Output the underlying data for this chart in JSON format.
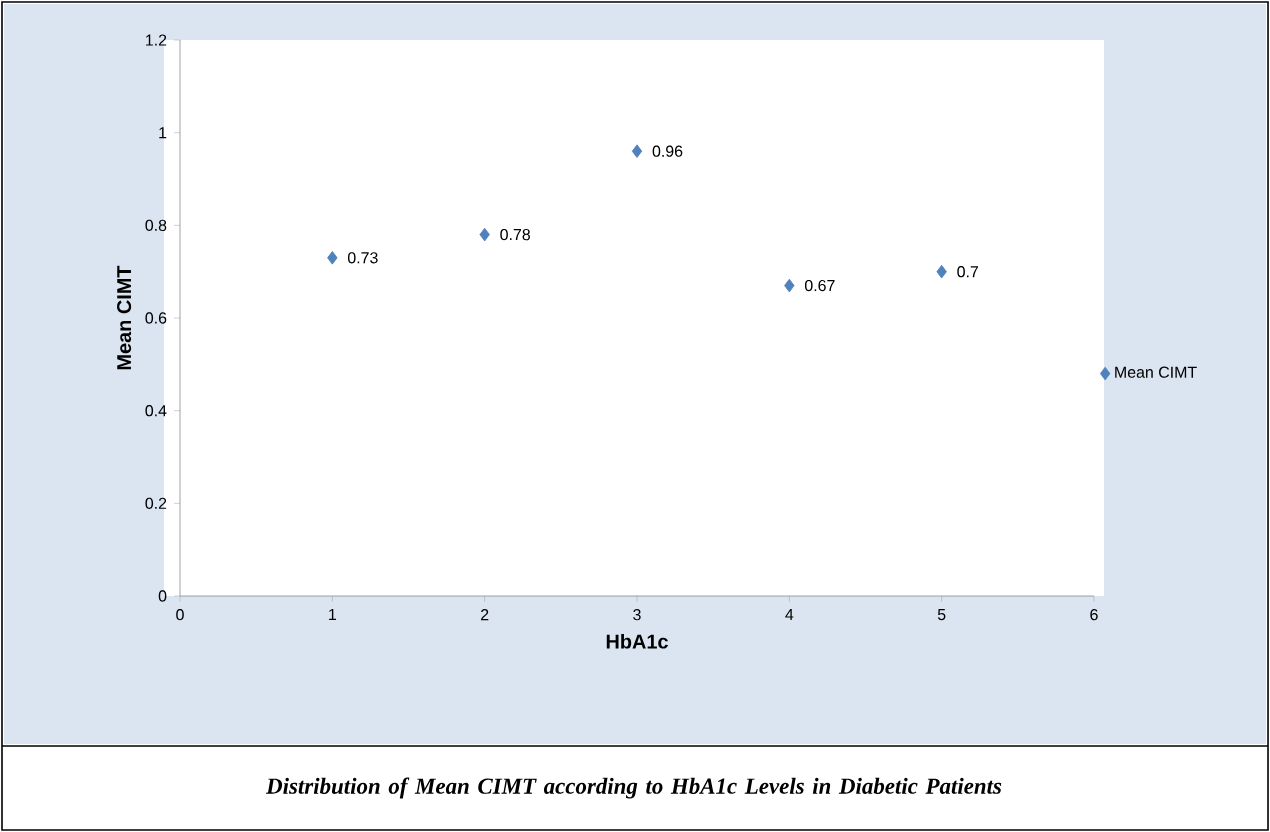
{
  "chart_data": {
    "type": "scatter",
    "title": "Distribution of Mean CIMT according to HbA1c Levels in Diabetic Patients",
    "xlabel": "HbA1c",
    "ylabel": "Mean CIMT",
    "x": [
      1,
      2,
      3,
      4,
      5
    ],
    "series": [
      {
        "name": "Mean CIMT",
        "color": "#4f81bd",
        "values": [
          0.73,
          0.78,
          0.96,
          0.67,
          0.7
        ]
      }
    ],
    "xlim": [
      0,
      6
    ],
    "xticks": [
      0,
      1,
      2,
      3,
      4,
      5,
      6
    ],
    "ylim": [
      0,
      1.2
    ],
    "yticks": [
      0,
      0.2,
      0.4,
      0.6,
      0.8,
      1,
      1.2
    ],
    "marker": "diamond",
    "data_labels": true,
    "legend": "right"
  }
}
